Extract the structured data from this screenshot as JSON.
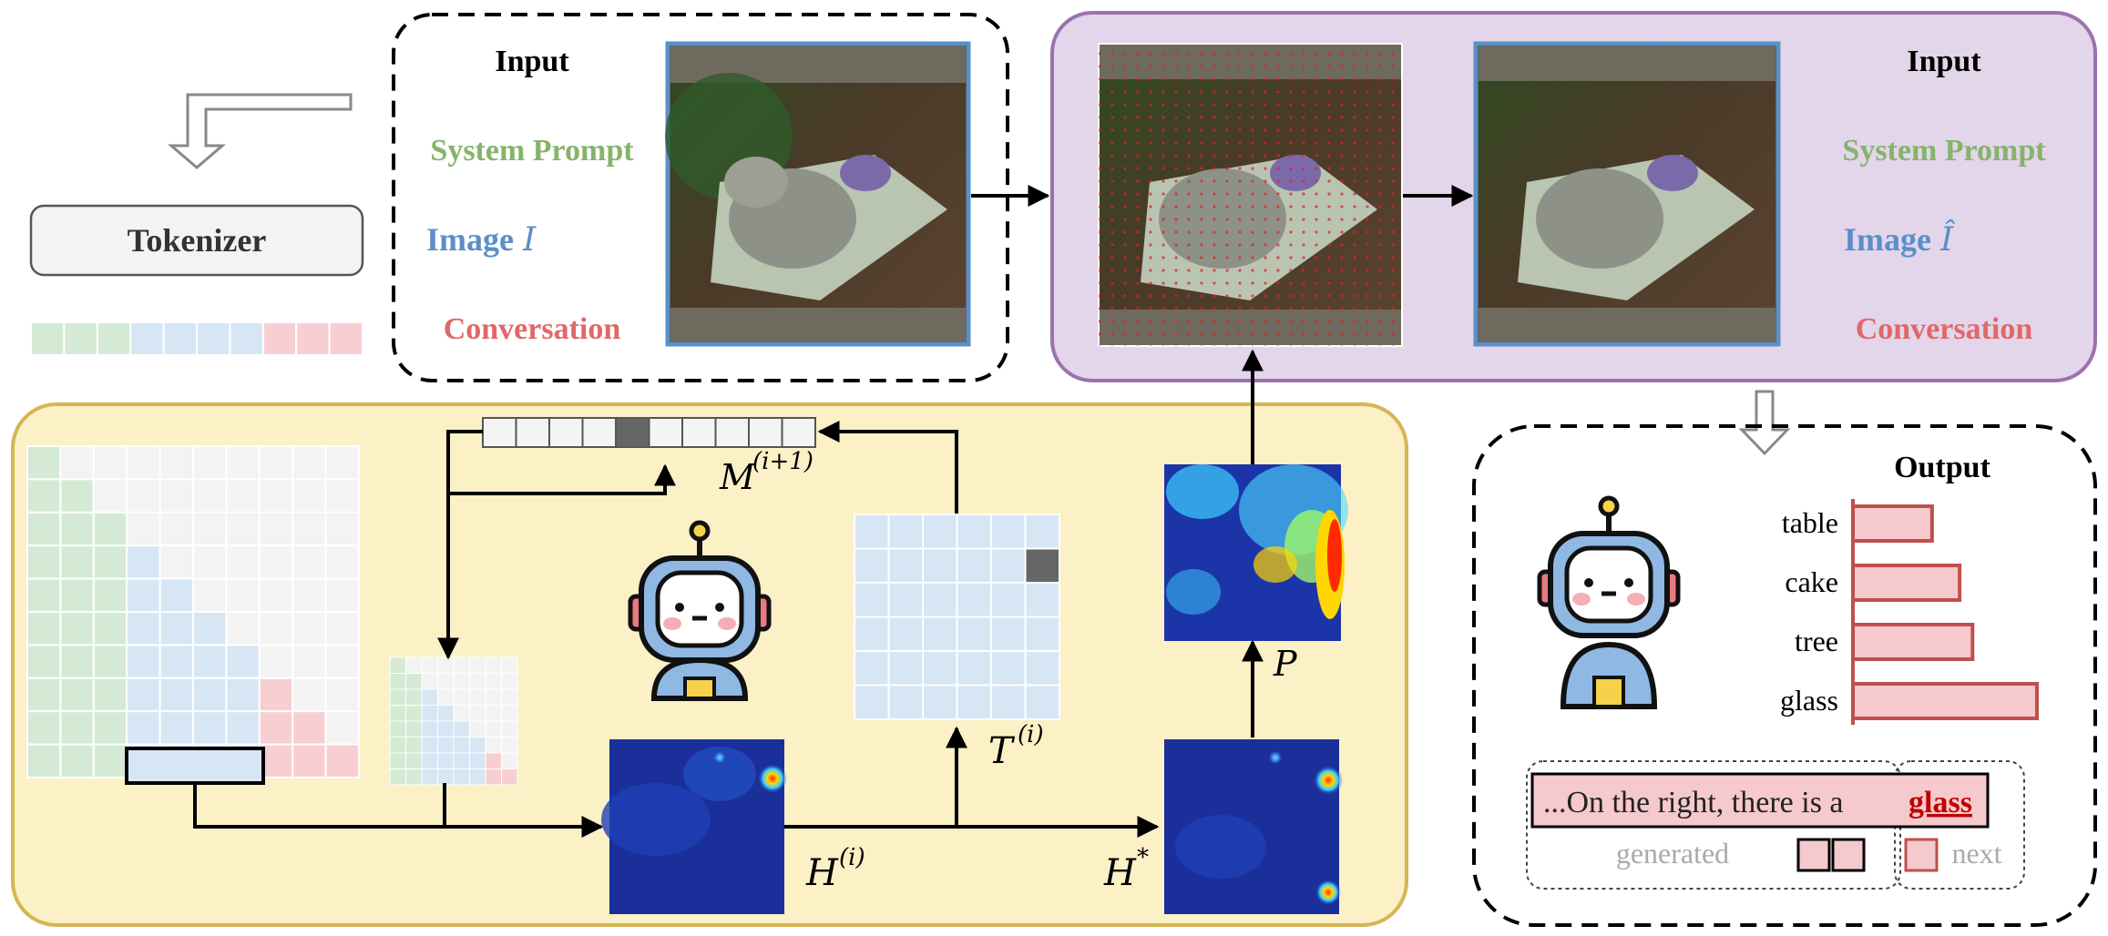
{
  "colors": {
    "green": "#86b36b",
    "blue": "#5b8fc7",
    "red": "#e06868",
    "green_light": "#d5ead5",
    "blue_light": "#d7e6f4",
    "red_light": "#f7cfd2",
    "purple_bg": "#e3d5ea",
    "purple_border": "#9a72ad",
    "yellow_bg": "#fbf0c6",
    "yellow_border": "#d6b553",
    "bar_fill": "#f6c9cc",
    "bar_stroke": "#c0504d",
    "highlight_red": "#c00000"
  },
  "tokenizer": {
    "label": "Tokenizer"
  },
  "input_left": {
    "title": "Input",
    "system_prompt": "System Prompt",
    "image": "Image",
    "image_symbol": "I",
    "conversation": "Conversation"
  },
  "input_right": {
    "title": "Input",
    "system_prompt": "System Prompt",
    "image": "Image",
    "image_symbol": "Î",
    "conversation": "Conversation"
  },
  "math_labels": {
    "mask_next": "M",
    "mask_next_sup": "(i+1)",
    "token_map": "T",
    "token_map_sup": "(i)",
    "head_map": "H",
    "head_map_sup": "(i)",
    "agg_map": "H",
    "agg_map_sup": "*",
    "prob_map": "P"
  },
  "output": {
    "title": "Output",
    "generated_text": "...On the right, there is a",
    "next_token": "glass",
    "generated_label": "generated",
    "next_label": "next"
  },
  "chart_data": {
    "type": "bar",
    "orientation": "horizontal",
    "categories": [
      "table",
      "cake",
      "tree",
      "glass"
    ],
    "values": [
      0.43,
      0.58,
      0.65,
      1.0
    ]
  }
}
